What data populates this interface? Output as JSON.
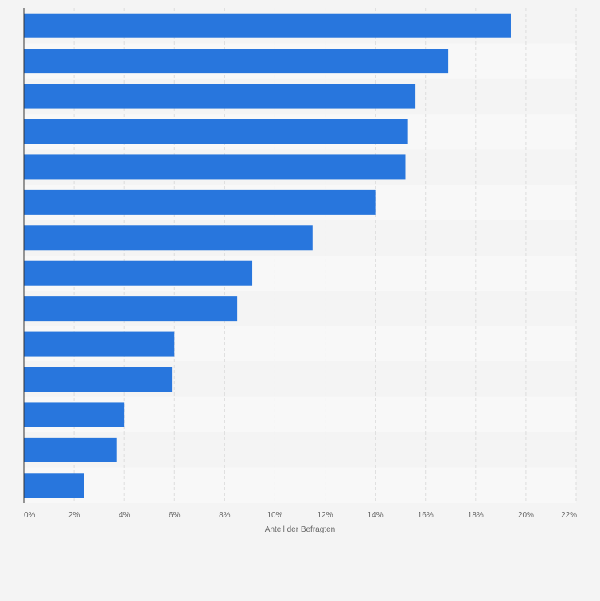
{
  "chart_data": {
    "type": "bar",
    "orientation": "horizontal",
    "xlabel": "Anteil der Befragten",
    "xlim": [
      0,
      22
    ],
    "x_ticks": [
      0,
      2,
      4,
      6,
      8,
      10,
      12,
      14,
      16,
      18,
      20,
      22
    ],
    "x_tick_labels": [
      "0%",
      "2%",
      "4%",
      "6%",
      "8%",
      "10%",
      "12%",
      "14%",
      "16%",
      "18%",
      "20%",
      "22%"
    ],
    "values": [
      19.4,
      16.9,
      15.6,
      15.3,
      15.2,
      14.0,
      11.5,
      9.1,
      8.5,
      6.0,
      5.9,
      4.0,
      3.7,
      2.4
    ],
    "grid": true,
    "colors": {
      "bar": "#2876dd",
      "band_light": "#f4f4f4",
      "band_lighter": "#f8f8f8",
      "grid": "#dddddd",
      "axis": "#333333"
    }
  }
}
